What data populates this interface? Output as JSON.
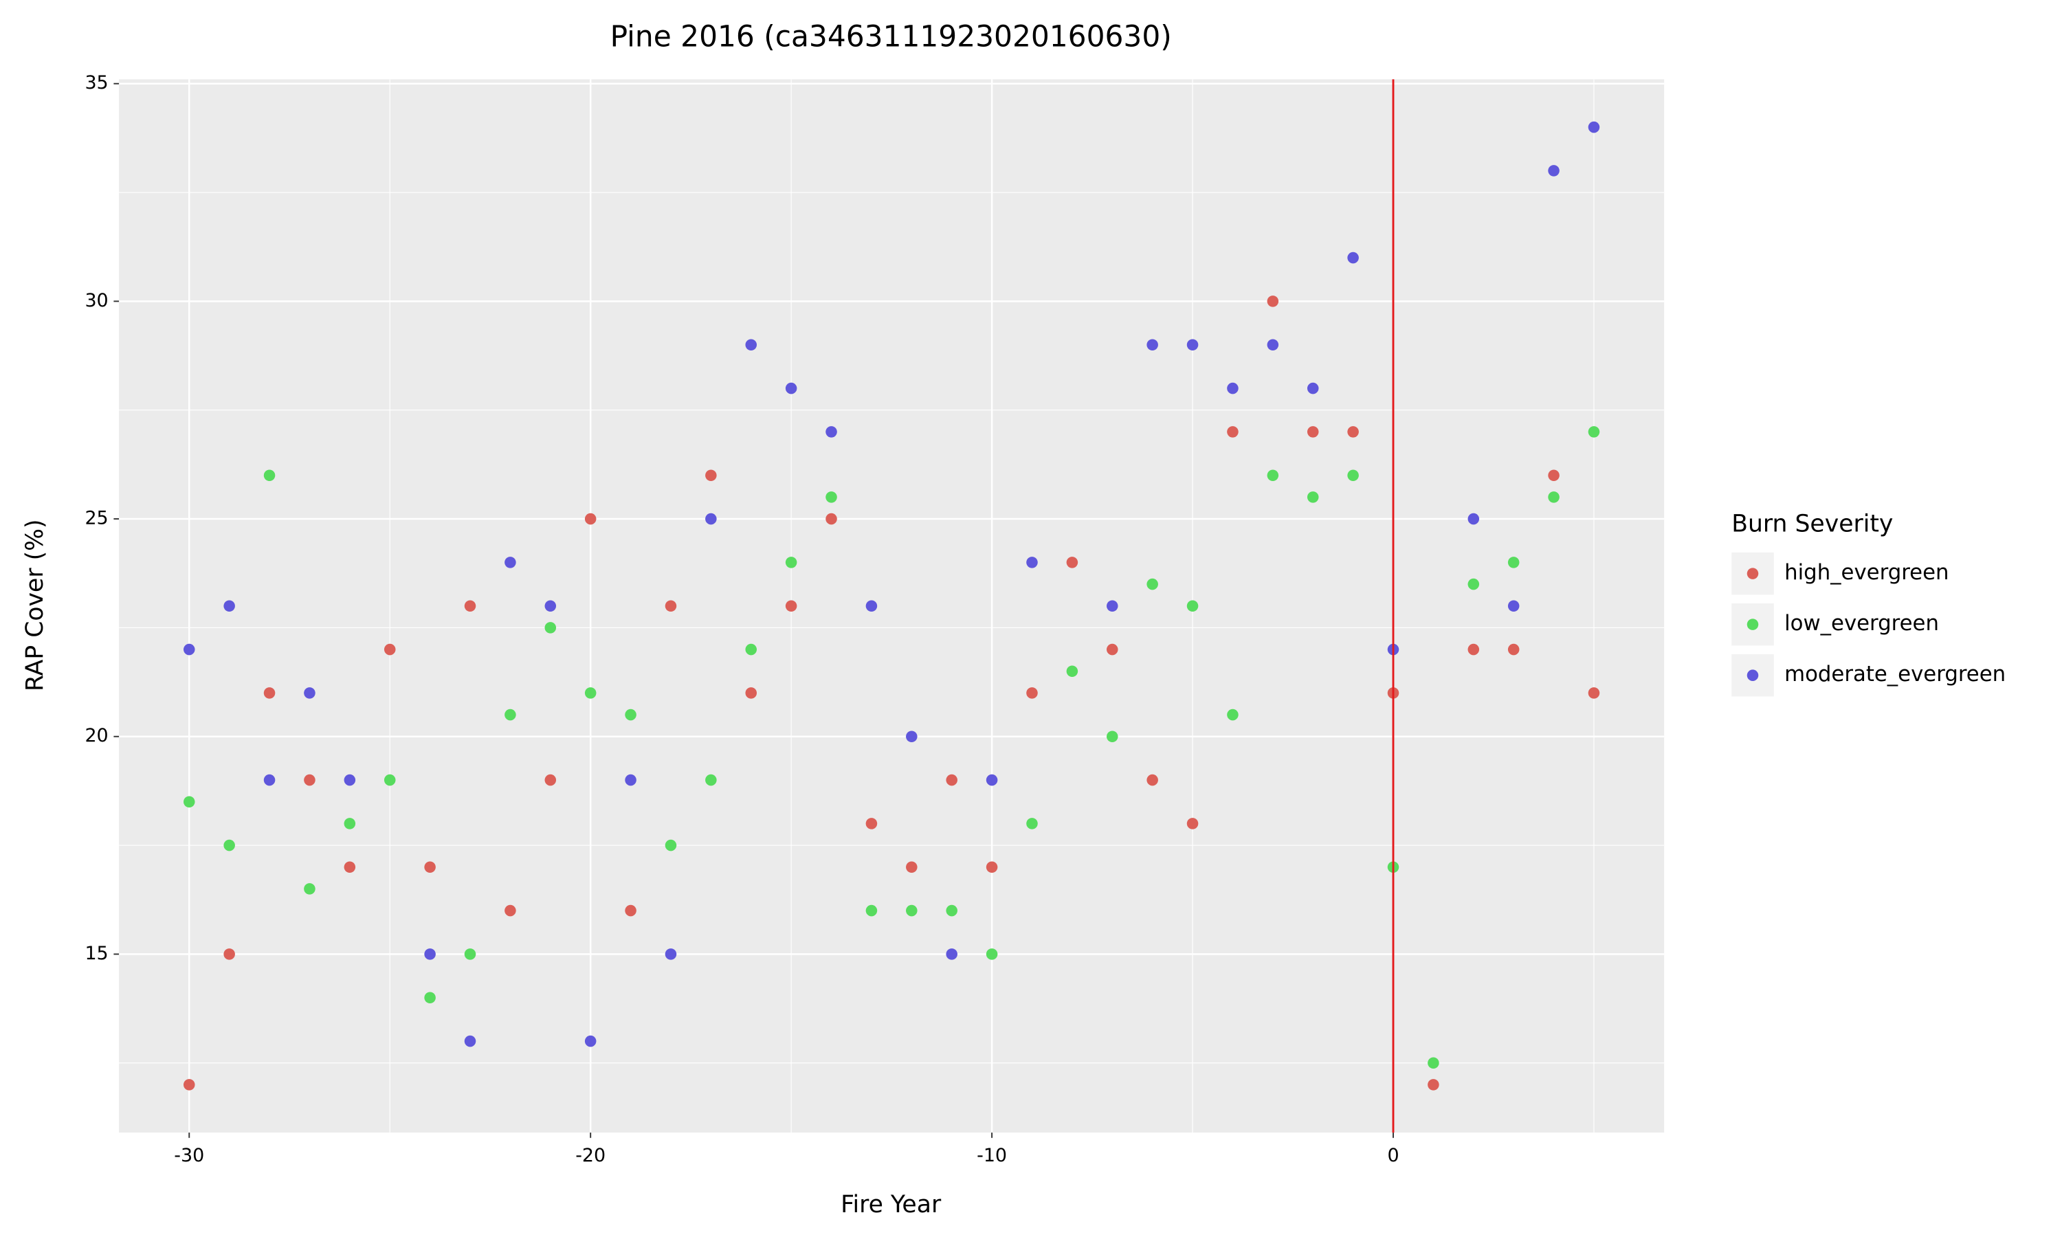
{
  "chart_data": {
    "type": "scatter",
    "title": "Pine 2016 (ca3463111923020160630)",
    "x_label": "Fire Year",
    "y_label": "RAP Cover (%)",
    "legend_title": "Burn Severity",
    "legend_position": "right",
    "x": [
      -30,
      -29,
      -28,
      -27,
      -26,
      -25,
      -24,
      -23,
      -22,
      -21,
      -20,
      -19,
      -18,
      -17,
      -16,
      -15,
      -14,
      -13,
      -12,
      -11,
      -10,
      -9,
      -8,
      -7,
      -6,
      -5,
      -4,
      -3,
      -2,
      -1,
      0,
      1,
      2,
      3,
      4,
      5
    ],
    "series": [
      {
        "name": "high_evergreen",
        "color": "#db5f57",
        "values": [
          12,
          15,
          21,
          19,
          17,
          22,
          17,
          23,
          16,
          19,
          25,
          16,
          23,
          26,
          21,
          23,
          25,
          18,
          17,
          19,
          17,
          21,
          24,
          22,
          19,
          18,
          27,
          30,
          27,
          27,
          21,
          12,
          22,
          22,
          26,
          21
        ]
      },
      {
        "name": "low_evergreen",
        "color": "#57db5e",
        "values": [
          18.5,
          17.5,
          26,
          16.5,
          18,
          19,
          14,
          15,
          20.5,
          22.5,
          21,
          20.5,
          17.5,
          19,
          22,
          24,
          25.5,
          16,
          16,
          16,
          15,
          18,
          21.5,
          20,
          23.5,
          23,
          20.5,
          26,
          25.5,
          26,
          17,
          12.5,
          23.5,
          24,
          25.5,
          27
        ]
      },
      {
        "name": "moderate_evergreen",
        "color": "#5f57db",
        "values": [
          22,
          23,
          19,
          21,
          19,
          null,
          15,
          13,
          24,
          23,
          13,
          19,
          15,
          25,
          29,
          28,
          27,
          23,
          20,
          15,
          19,
          24,
          null,
          23,
          29,
          29,
          28,
          29,
          28,
          31,
          22,
          null,
          25,
          23,
          33,
          34
        ]
      }
    ],
    "xlim": [
      -31.75,
      6.75
    ],
    "xticks": [
      -30,
      -20,
      -10,
      0
    ],
    "x_minor_ticks": [
      -25,
      -15,
      -5,
      5
    ],
    "ylim": [
      10.9,
      35.1
    ],
    "yticks": [
      15,
      20,
      25,
      30,
      35
    ],
    "y_minor_ticks": [
      12.5,
      17.5,
      22.5,
      27.5,
      32.5
    ],
    "grid": true,
    "vline": {
      "x": 0,
      "color": "#e41a1c"
    }
  }
}
